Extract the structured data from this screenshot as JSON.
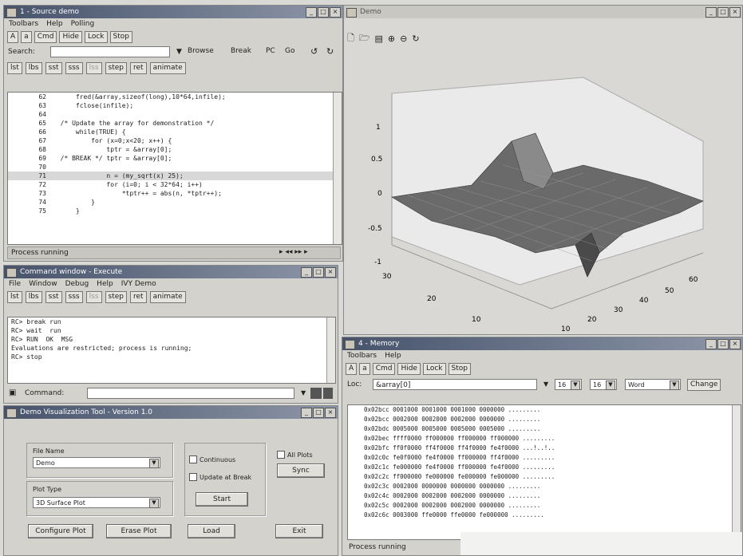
{
  "src_window": {
    "title": "1 - Source demo",
    "menu": [
      "Toolbars",
      "Help",
      "Polling"
    ],
    "toolbar1": [
      "A",
      "a",
      "Cmd",
      "Hide",
      "Lock",
      "Stop"
    ],
    "search_label": "Search:",
    "search_value": "",
    "toolbar2": [
      "Browse",
      "Break",
      "PC",
      "Go"
    ],
    "toolbar3": [
      "lst",
      "lbs",
      "sst",
      "sss",
      "lss",
      "step",
      "ret",
      "animate"
    ],
    "code_lines": [
      {
        "num": "62",
        "text": "      fred(&array,sizeof(long),10*64,infile);"
      },
      {
        "num": "63",
        "text": "      fclose(infile);"
      },
      {
        "num": "64",
        "text": ""
      },
      {
        "num": "65",
        "text": "  /* Update the array for demonstration */"
      },
      {
        "num": "66",
        "text": "      while(TRUE) {"
      },
      {
        "num": "67",
        "text": "          for (x=0;x<20; x++) {"
      },
      {
        "num": "68",
        "text": "              tptr = &array[0];"
      },
      {
        "num": "69",
        "text": "  /* BREAK */ tptr = &array[0];"
      },
      {
        "num": "70",
        "text": ""
      },
      {
        "num": "71",
        "text": "              n = (my_sqrt(x) 25);"
      },
      {
        "num": "72",
        "text": "              for (i=0; i < 32*64; i++)"
      },
      {
        "num": "73",
        "text": "                  *tptr++ = abs(n, *tptr++);"
      },
      {
        "num": "74",
        "text": "          }"
      },
      {
        "num": "75",
        "text": "      }"
      }
    ],
    "status_text": "Process running"
  },
  "cmd_window": {
    "title": "Command window - Execute",
    "menu": [
      "File",
      "Window",
      "Debug",
      "Help",
      "IVY Demo"
    ],
    "toolbar": [
      "lst",
      "lbs",
      "sst",
      "sss",
      "lss",
      "step",
      "ret",
      "animate"
    ],
    "lines": [
      "RC> break run",
      "RC> wait  run",
      "RC> RUN  OK  MSG",
      "Evaluations are restricted; process is running;",
      "RC> stop"
    ],
    "command_label": "Command:",
    "command_value": ""
  },
  "viz_window": {
    "title": "Demo Visualization Tool - Version 1.0",
    "file_name_label": "File Name",
    "file_name_value": "Demo",
    "plot_type_label": "Plot Type",
    "plot_type_value": "3D Surface Plot",
    "continuous_label": "Continuous",
    "update_break_label": "Update at Break",
    "start_label": "Start",
    "all_plots_label": "All Plots",
    "sync_label": "Sync",
    "configure_label": "Configure Plot",
    "erase_label": "Erase Plot",
    "load_label": "Load",
    "exit_label": "Exit"
  },
  "plot_window": {
    "title": "Demo",
    "z_ticks": [
      "1",
      "0.5",
      "0",
      "-0.5",
      "-1"
    ],
    "left_ticks": [
      "30",
      "20",
      "10"
    ],
    "right_ticks": [
      "10",
      "20",
      "30",
      "40",
      "50",
      "60"
    ]
  },
  "mem_window": {
    "title": "4 - Memory",
    "menu": [
      "Toolbars",
      "Help"
    ],
    "toolbar": [
      "A",
      "a",
      "Cmd",
      "Hide",
      "Lock",
      "Stop"
    ],
    "addr_label": "Loc:",
    "addr_value": "&array[0]",
    "opt1": "16",
    "opt2": "16",
    "opt3": "Word",
    "change_label": "Change",
    "rows": [
      "0x02bcc 0001000 0001000 0001000 0000000 .........",
      "0x02bcc 0002000 0002000 0002000 0000000 .........",
      "0x02bdc 0005000 0005000 0005000 0005000 .........",
      "0x02bec ffff0000 ff000000 ff000000 ff000000 .........",
      "0x02bfc ff0f0000 ff4f0000 ff4f0000 fe4f0000 ...!..!..",
      "0x02c0c fe0f0000 fe4f0000 ff000000 ff4f0000 .........",
      "0x02c1c fe000000 fe4f0000 ff000000 fe4f0000 .........",
      "0x02c2c ff000000 fe000000 fe000000 fe000000 .........",
      "0x02c3c 0002000 0000000 0000000 0000000 .........",
      "0x02c4c 0002000 0002000 0002000 0000000 .........",
      "0x02c5c 0002000 0002000 0002000 0000000 .........",
      "0x02c6c 0003000 ffe0000 ffe0000 fe000000 ........."
    ],
    "status_text": "Process running"
  }
}
